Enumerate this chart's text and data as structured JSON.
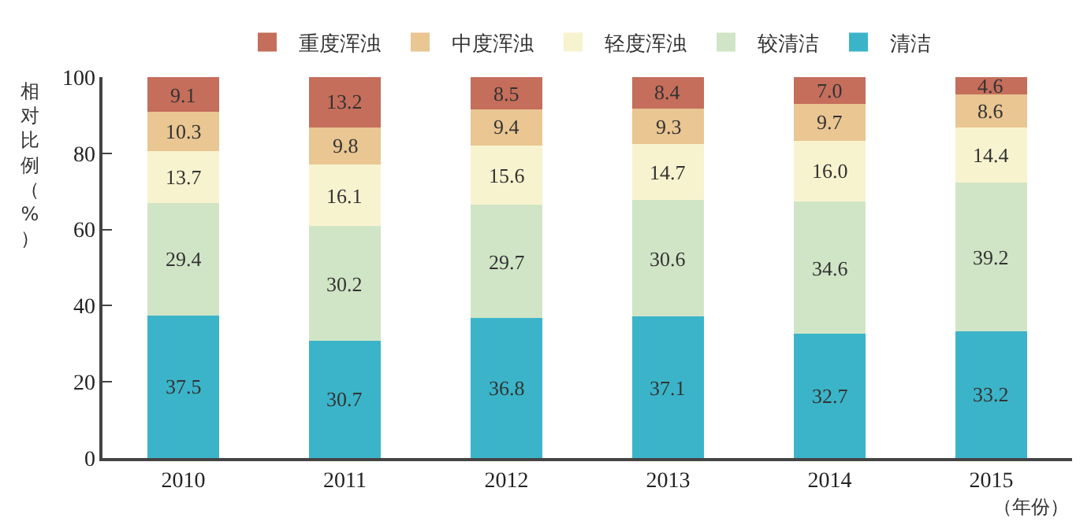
{
  "chart_data": {
    "type": "bar",
    "stacked": true,
    "ylabel": "相对比例（%）",
    "xlabel": "（年份）",
    "categories": [
      "2010",
      "2011",
      "2012",
      "2013",
      "2014",
      "2015"
    ],
    "series": [
      {
        "name": "清洁",
        "color": "#3bb4c9",
        "values": [
          37.5,
          30.7,
          36.8,
          37.1,
          32.7,
          33.2
        ],
        "value_labels": [
          "37.5",
          "30.7",
          "36.8",
          "37.1",
          "32.7",
          "33.2"
        ]
      },
      {
        "name": "较清洁",
        "color": "#d0e5c6",
        "values": [
          29.4,
          30.2,
          29.7,
          30.6,
          34.6,
          39.2
        ],
        "value_labels": [
          "29.4",
          "30.2",
          "29.7",
          "30.6",
          "34.6",
          "39.2"
        ]
      },
      {
        "name": "轻度浑浊",
        "color": "#f8f3cf",
        "values": [
          13.7,
          16.1,
          15.6,
          14.7,
          16.0,
          14.4
        ],
        "value_labels": [
          "13.7",
          "16.1",
          "15.6",
          "14.7",
          "16.0",
          "14.4"
        ]
      },
      {
        "name": "中度浑浊",
        "color": "#e9c692",
        "values": [
          10.3,
          9.8,
          9.4,
          9.3,
          9.7,
          8.6
        ],
        "value_labels": [
          "10.3",
          "9.8",
          "9.4",
          "9.3",
          "9.7",
          "8.6"
        ]
      },
      {
        "name": "重度浑浊",
        "color": "#c46e5b",
        "values": [
          9.1,
          13.2,
          8.5,
          8.4,
          7.0,
          4.6
        ],
        "value_labels": [
          "9.1",
          "13.2",
          "8.5",
          "8.4",
          "7.0",
          "4.6"
        ]
      }
    ],
    "ylim": [
      0,
      100
    ],
    "yticks": [
      0,
      20,
      40,
      60,
      80,
      100
    ],
    "grid": false,
    "legend": "top"
  }
}
